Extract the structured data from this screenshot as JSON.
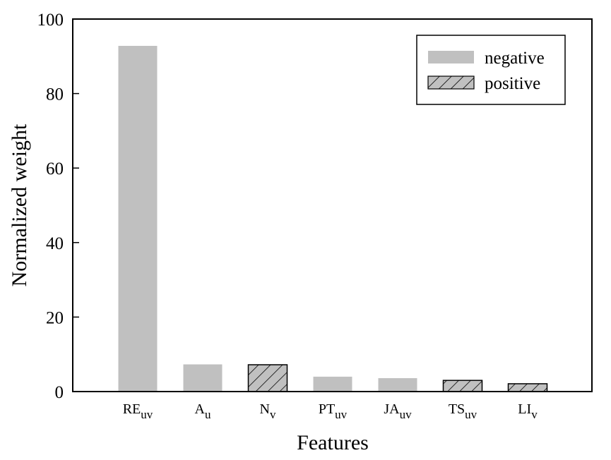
{
  "chart_data": {
    "type": "bar",
    "xlabel": "Features",
    "ylabel": "Normalized weight",
    "ylim": [
      0,
      100
    ],
    "yticks": [
      0,
      20,
      40,
      60,
      80,
      100
    ],
    "grid": false,
    "legend_position": "top-right",
    "categories": [
      {
        "base": "RE",
        "sub": "uv"
      },
      {
        "base": "A",
        "sub": "u"
      },
      {
        "base": "N",
        "sub": "v"
      },
      {
        "base": "PT",
        "sub": "uv"
      },
      {
        "base": "JA",
        "sub": "uv"
      },
      {
        "base": "TS",
        "sub": "uv"
      },
      {
        "base": "LI",
        "sub": "v"
      }
    ],
    "values": [
      92.8,
      7.3,
      7.2,
      4.0,
      3.6,
      3.0,
      2.1
    ],
    "series_of_bar": [
      "negative",
      "negative",
      "positive",
      "negative",
      "negative",
      "positive",
      "positive"
    ],
    "series": [
      {
        "name": "negative",
        "style": "solid",
        "color": "#c0c0c0"
      },
      {
        "name": "positive",
        "style": "hatched",
        "color": "#c0c0c0"
      }
    ]
  }
}
